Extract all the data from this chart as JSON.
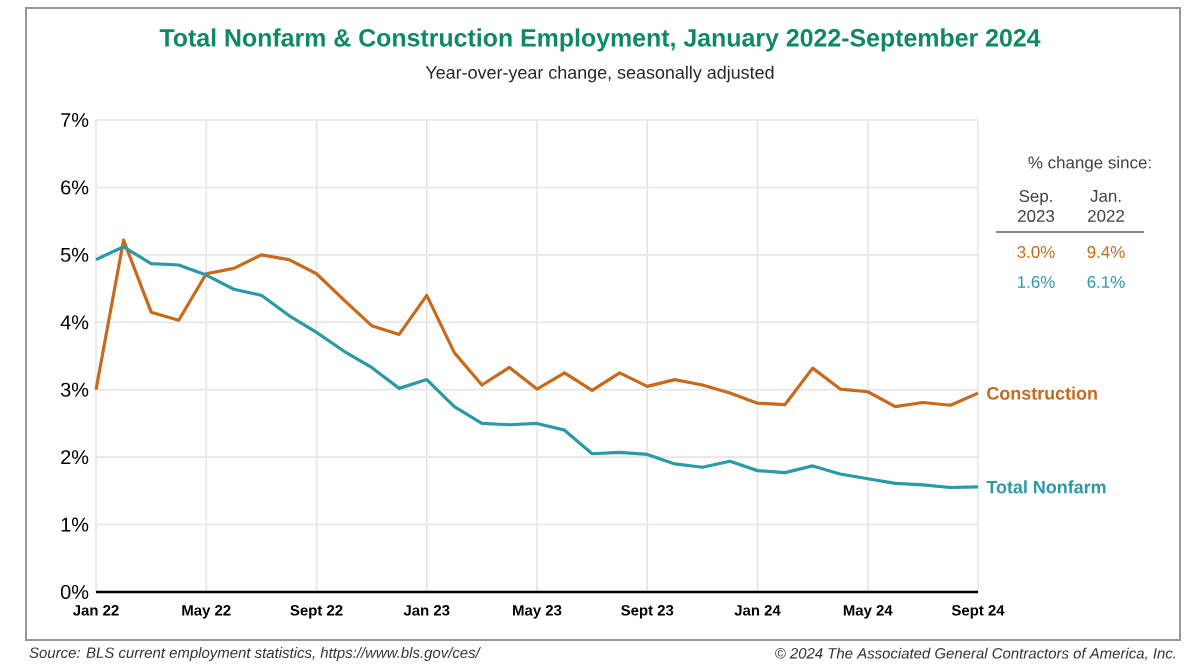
{
  "chart_data": {
    "type": "line",
    "title": "Total Nonfarm & Construction Employment, January 2022-September 2024",
    "subtitle": "Year-over-year change, seasonally adjusted",
    "categories": [
      "Jan 22",
      null,
      null,
      null,
      "May 22",
      null,
      null,
      null,
      "Sept 22",
      null,
      null,
      null,
      "Jan 23",
      null,
      null,
      null,
      "May 23",
      null,
      null,
      null,
      "Sept 23",
      null,
      null,
      null,
      "Jan 24",
      null,
      null,
      null,
      "May 24",
      null,
      null,
      null,
      "Sept 24"
    ],
    "series": [
      {
        "name": "Construction",
        "color": "#c8691c",
        "values": [
          3.0,
          5.22,
          4.15,
          4.03,
          4.72,
          4.8,
          5.0,
          4.93,
          4.72,
          4.33,
          3.95,
          3.82,
          4.4,
          3.55,
          3.07,
          3.33,
          3.01,
          3.25,
          2.99,
          3.25,
          3.05,
          3.15,
          3.07,
          2.95,
          2.8,
          2.78,
          3.32,
          3.01,
          2.97,
          2.75,
          2.81,
          2.77,
          2.95
        ]
      },
      {
        "name": "Total Nonfarm",
        "color": "#2a9aa8",
        "values": [
          4.93,
          5.12,
          4.87,
          4.85,
          4.7,
          4.49,
          4.4,
          4.1,
          3.85,
          3.57,
          3.33,
          3.02,
          3.15,
          2.75,
          2.5,
          2.48,
          2.5,
          2.4,
          2.05,
          2.07,
          2.04,
          1.9,
          1.85,
          1.94,
          1.8,
          1.77,
          1.87,
          1.75,
          1.68,
          1.61,
          1.59,
          1.55,
          1.56
        ]
      }
    ],
    "ylim": [
      0,
      7
    ],
    "yticks": [
      {
        "value": 0,
        "label": "0%"
      },
      {
        "value": 1,
        "label": "1%"
      },
      {
        "value": 2,
        "label": "2%"
      },
      {
        "value": 3,
        "label": "3%"
      },
      {
        "value": 4,
        "label": "4%"
      },
      {
        "value": 5,
        "label": "5%"
      },
      {
        "value": 6,
        "label": "6%"
      },
      {
        "value": 7,
        "label": "7%"
      }
    ],
    "grid": true,
    "annotations": [
      "% change since:",
      "Sep. 2023",
      "Jan. 2022",
      "3.0%",
      "9.4%",
      "1.6%",
      "6.1%",
      "Source: BLS current employment statistics, https://www.bls.gov/ces/",
      "© 2024 The Associated General Contractors of America, Inc."
    ]
  }
}
